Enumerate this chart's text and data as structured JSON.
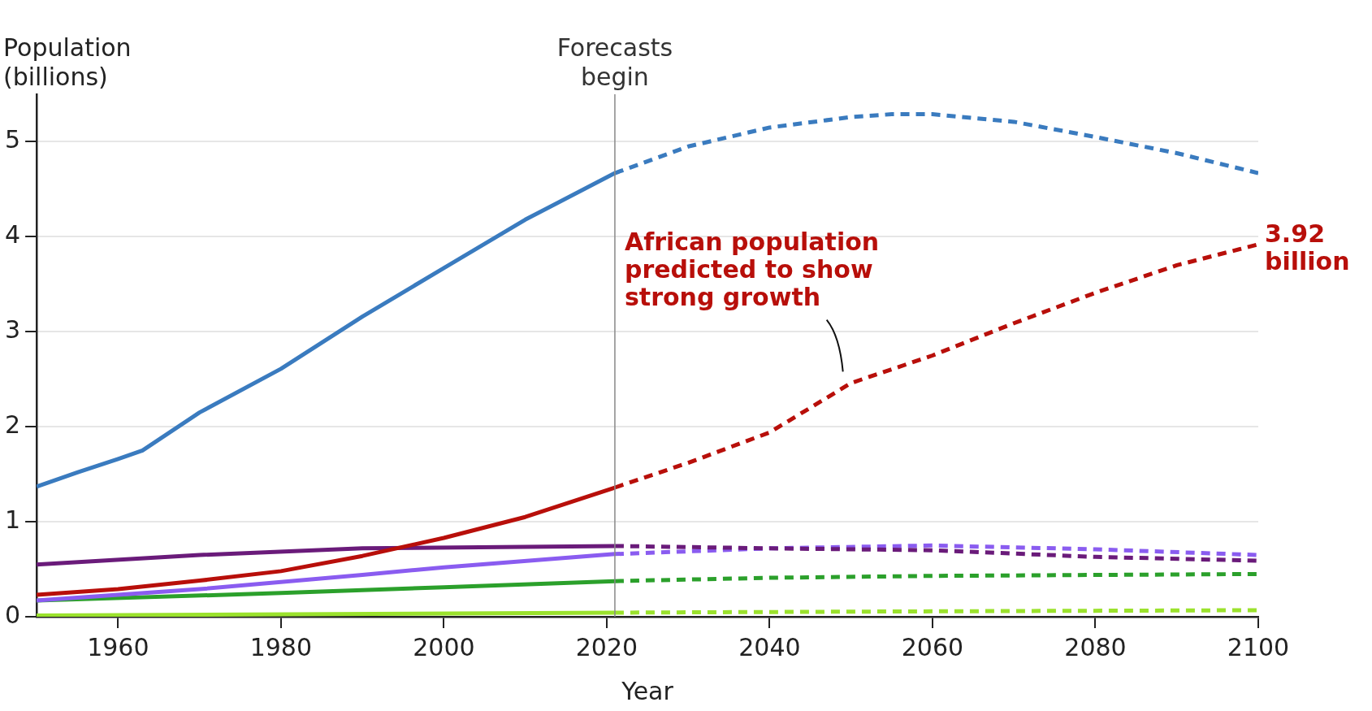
{
  "chart_data": {
    "type": "line",
    "xlabel": "Year",
    "ylabel": "Population (billions)",
    "xlim": [
      1950,
      2100
    ],
    "xticks": [
      1960,
      1980,
      2000,
      2020,
      2040,
      2060,
      2080,
      2100
    ],
    "ylim": [
      0,
      5.5
    ],
    "yticks": [
      0,
      1,
      2,
      3,
      4,
      5
    ],
    "grid": "y",
    "legend": false,
    "marker": "none",
    "series": [
      {
        "color": "#3a7bbf",
        "line_style": "solid",
        "x": [
          1950,
          1955,
          1960,
          1963,
          1970,
          1980,
          1990,
          2000,
          2010,
          2021
        ],
        "values": [
          1.37,
          1.52,
          1.66,
          1.75,
          2.15,
          2.61,
          3.16,
          3.67,
          4.18,
          4.67
        ]
      },
      {
        "color": "#3a7bbf",
        "line_style": "dashed",
        "x": [
          2021,
          2030,
          2040,
          2050,
          2055,
          2060,
          2070,
          2080,
          2090,
          2100
        ],
        "values": [
          4.67,
          4.95,
          5.15,
          5.26,
          5.29,
          5.29,
          5.21,
          5.05,
          4.88,
          4.67
        ]
      },
      {
        "color": "#b80f0a",
        "line_style": "solid",
        "x": [
          1950,
          1960,
          1970,
          1980,
          1990,
          2000,
          2010,
          2021
        ],
        "values": [
          0.23,
          0.29,
          0.38,
          0.48,
          0.64,
          0.83,
          1.05,
          1.36
        ]
      },
      {
        "color": "#b80f0a",
        "line_style": "dashed",
        "x": [
          2021,
          2030,
          2040,
          2050,
          2060,
          2070,
          2080,
          2090,
          2100
        ],
        "values": [
          1.36,
          1.62,
          1.94,
          2.46,
          2.75,
          3.09,
          3.41,
          3.7,
          3.92
        ]
      },
      {
        "color": "#6a1b7a",
        "line_style": "solid",
        "x": [
          1950,
          1970,
          1990,
          2021
        ],
        "values": [
          0.55,
          0.65,
          0.72,
          0.745
        ]
      },
      {
        "color": "#6a1b7a",
        "line_style": "dashed",
        "x": [
          2021,
          2040,
          2060,
          2080,
          2100
        ],
        "values": [
          0.745,
          0.72,
          0.7,
          0.63,
          0.59
        ]
      },
      {
        "color": "#8a5cf0",
        "line_style": "solid",
        "x": [
          1950,
          1970,
          1990,
          2000,
          2021
        ],
        "values": [
          0.17,
          0.29,
          0.44,
          0.52,
          0.66
        ]
      },
      {
        "color": "#8a5cf0",
        "line_style": "dashed",
        "x": [
          2021,
          2040,
          2060,
          2080,
          2100
        ],
        "values": [
          0.66,
          0.72,
          0.75,
          0.71,
          0.65
        ]
      },
      {
        "color": "#2ba02b",
        "line_style": "solid",
        "x": [
          1950,
          1980,
          2000,
          2021
        ],
        "values": [
          0.17,
          0.25,
          0.31,
          0.375
        ]
      },
      {
        "color": "#2ba02b",
        "line_style": "dashed",
        "x": [
          2021,
          2040,
          2060,
          2080,
          2100
        ],
        "values": [
          0.375,
          0.41,
          0.43,
          0.44,
          0.45
        ]
      },
      {
        "color": "#9be22d",
        "line_style": "solid",
        "x": [
          1950,
          2021
        ],
        "values": [
          0.013,
          0.043
        ]
      },
      {
        "color": "#9be22d",
        "line_style": "dashed",
        "x": [
          2021,
          2060,
          2100
        ],
        "values": [
          0.043,
          0.057,
          0.069
        ]
      }
    ],
    "ref_lines": [
      {
        "axis": "x",
        "value": 2021,
        "label": "Forecasts begin",
        "color": "#888888"
      }
    ],
    "annotations": [
      {
        "text": "African population predicted to show strong growth",
        "x": 2050,
        "y": 2.46
      },
      {
        "text": "3.92 billion",
        "x": 2100,
        "y": 3.92
      }
    ]
  }
}
